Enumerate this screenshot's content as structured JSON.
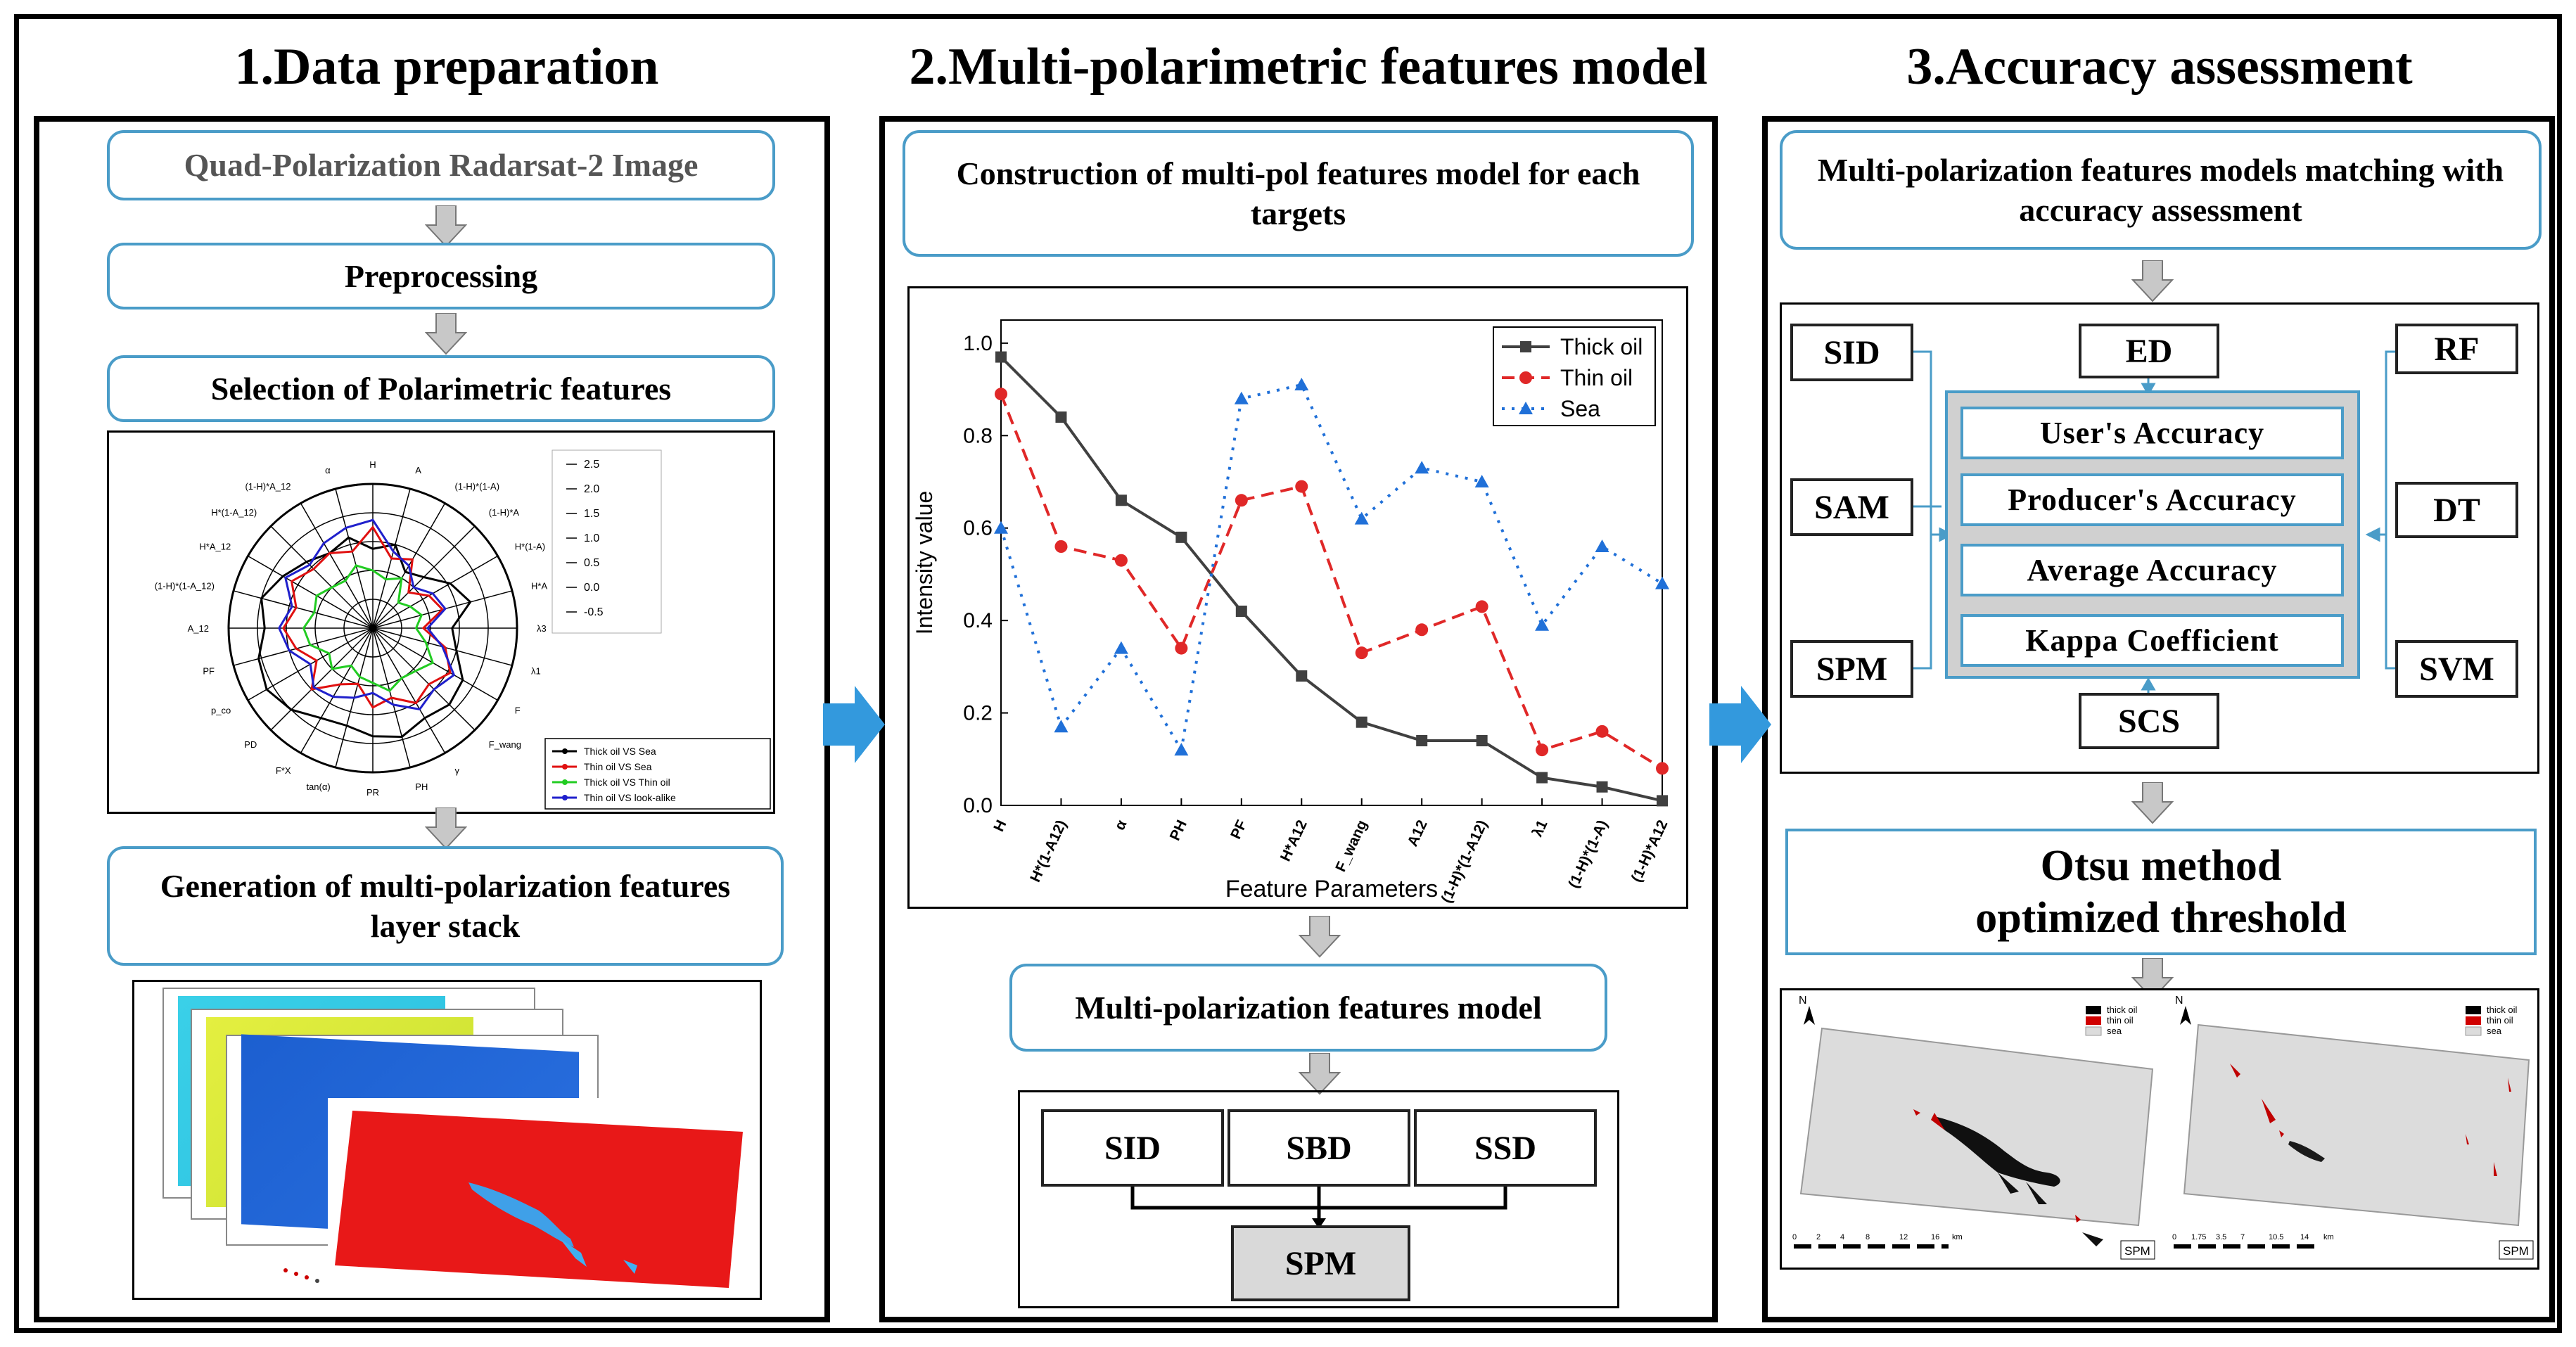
{
  "sections": {
    "s1": {
      "title": "1.Data preparation"
    },
    "s2": {
      "title": "2.Multi-polarimetric features model"
    },
    "s3": {
      "title": "3.Accuracy assessment"
    }
  },
  "s1": {
    "step1": "Quad-Polarization Radarsat-2 Image",
    "step2": "Preprocessing",
    "step3": "Selection of Polarimetric features",
    "step4": "Generation of multi-polarization features layer stack"
  },
  "radar": {
    "axes": [
      "H",
      "A",
      "(1-H)*(1-A)",
      "(1-H)*A",
      "H*(1-A)",
      "H*A",
      "λ3",
      "λ1",
      "F",
      "F_wang",
      "γ",
      "PH",
      "PR",
      "tan(α)",
      "F*X",
      "PD",
      "p_co",
      "PF",
      "A_12",
      "(1-H)*(1-A_12)",
      "H*A_12",
      "H*(1-A_12)",
      "(1-H)*A_12",
      "α"
    ],
    "scale": [
      "2.5",
      "2.0",
      "1.5",
      "1.0",
      "0.5",
      "0.0",
      "-0.5"
    ],
    "legend": [
      {
        "label": "Thick oil  VS  Sea",
        "color": "#000000"
      },
      {
        "label": "Thin oil  VS  Sea",
        "color": "#e01010"
      },
      {
        "label": "Thick oil  VS  Thin oil",
        "color": "#22cc22"
      },
      {
        "label": "Thin oil  VS  look-alike",
        "color": "#2020cc"
      }
    ]
  },
  "s2": {
    "header": "Construction of multi-pol features model for each targets",
    "model_title": "Multi-polarization features model",
    "metrics": [
      "SID",
      "SBD",
      "SSD"
    ],
    "combined": "SPM"
  },
  "chart_data": {
    "type": "line",
    "title": "",
    "xlabel": "Feature Parameters",
    "ylabel": "Intensity value",
    "ylim": [
      0,
      1.05
    ],
    "yticks": [
      "0.0",
      "0.2",
      "0.4",
      "0.6",
      "0.8",
      "1.0"
    ],
    "categories": [
      "H",
      "H*(1-A12)",
      "α",
      "PH",
      "PF",
      "H*A12",
      "F_wang",
      "A12",
      "(1-H)*(1-A12)",
      "λ1",
      "(1-H)*(1-A)",
      "(1-H)*A12"
    ],
    "series": [
      {
        "name": "Thick oil",
        "color": "#404040",
        "values": [
          0.97,
          0.84,
          0.66,
          0.58,
          0.42,
          0.28,
          0.18,
          0.14,
          0.14,
          0.06,
          0.04,
          0.01
        ]
      },
      {
        "name": "Thin oil",
        "color": "#e02828",
        "values": [
          0.89,
          0.56,
          0.53,
          0.34,
          0.66,
          0.69,
          0.33,
          0.38,
          0.43,
          0.12,
          0.16,
          0.08
        ]
      },
      {
        "name": "Sea",
        "color": "#2070d8",
        "values": [
          0.6,
          0.17,
          0.34,
          0.12,
          0.88,
          0.91,
          0.62,
          0.73,
          0.7,
          0.39,
          0.56,
          0.48
        ]
      }
    ]
  },
  "s3": {
    "header": "Multi-polarization features models matching with accuracy assessment",
    "left": [
      "SID",
      "SAM",
      "SPM"
    ],
    "right": [
      "RF",
      "DT",
      "SVM"
    ],
    "top": "ED",
    "bottom": "SCS",
    "accuracies": [
      "User's Accuracy",
      "Producer's Accuracy",
      "Average Accuracy",
      "Kappa Coefficient"
    ],
    "otsu_line1": "Otsu method",
    "otsu_line2": "optimized threshold",
    "map1": {
      "legend": [
        "thick oil",
        "thin oil",
        "sea"
      ],
      "north": "N",
      "label": "SPM",
      "scale": [
        "0",
        "2",
        "4",
        "8",
        "12",
        "16",
        "km"
      ]
    },
    "map2": {
      "legend": [
        "thick oil",
        "thin oil",
        "sea"
      ],
      "north": "N",
      "label": "SPM",
      "scale": [
        "0",
        "1.75",
        "3.5",
        "7",
        "10.5",
        "14",
        "km"
      ]
    }
  }
}
